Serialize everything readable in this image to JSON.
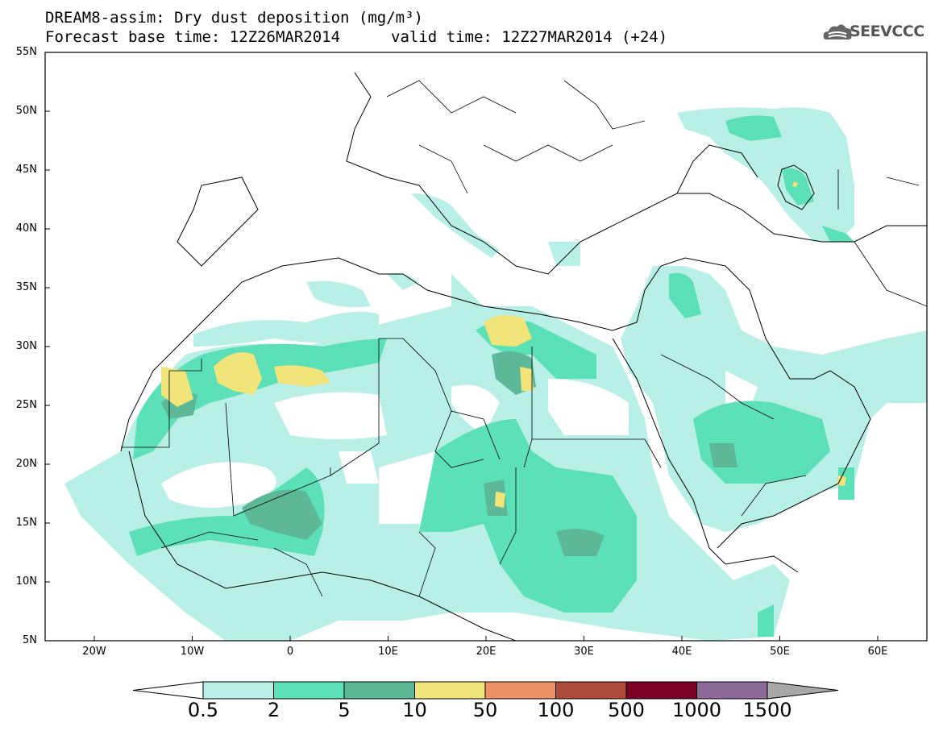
{
  "header": {
    "title_line1": "DREAM8-assim: Dry dust deposition (mg/m³)",
    "forecast_base": "Forecast base time: 12Z26MAR2014",
    "valid_time": "valid time: 12Z27MAR2014 (+24)"
  },
  "logo": {
    "text": "SEEVCCC",
    "icon": "cloud-icon"
  },
  "axes": {
    "lat_labels": [
      "55N",
      "50N",
      "45N",
      "40N",
      "35N",
      "30N",
      "25N",
      "20N",
      "15N",
      "10N",
      "5N"
    ],
    "lon_labels": [
      "20W",
      "10W",
      "0",
      "10E",
      "20E",
      "30E",
      "40E",
      "50E",
      "60E"
    ]
  },
  "colorbar": {
    "labels": [
      "0.5",
      "2",
      "5",
      "10",
      "50",
      "100",
      "500",
      "1000",
      "1500"
    ],
    "colors": [
      "#b8efe6",
      "#5ce0b7",
      "#5cb896",
      "#f0e47a",
      "#ec9266",
      "#ad4b3a",
      "#7a0024",
      "#8c6a98"
    ],
    "under_color": "#ffffff",
    "over_color": "#a8a8a8"
  }
}
